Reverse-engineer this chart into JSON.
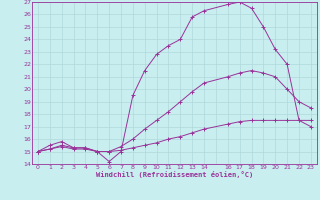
{
  "xlabel": "Windchill (Refroidissement éolien,°C)",
  "background_color": "#c8eef0",
  "grid_color": "#b0d8da",
  "line_color": "#993399",
  "xlim": [
    -0.5,
    23.5
  ],
  "ylim": [
    14,
    27
  ],
  "yticks": [
    14,
    15,
    16,
    17,
    18,
    19,
    20,
    21,
    22,
    23,
    24,
    25,
    26,
    27
  ],
  "xtick_labels": [
    "0",
    "1",
    "2",
    "3",
    "4",
    "5",
    "6",
    "7",
    "8",
    "9",
    "10",
    "11",
    "12",
    "13",
    "14",
    "",
    "16",
    "17",
    "18",
    "19",
    "20",
    "21",
    "22",
    "23"
  ],
  "xtick_positions": [
    0,
    1,
    2,
    3,
    4,
    5,
    6,
    7,
    8,
    9,
    10,
    11,
    12,
    13,
    14,
    15,
    16,
    17,
    18,
    19,
    20,
    21,
    22,
    23
  ],
  "lines": [
    {
      "x": [
        0,
        1,
        2,
        3,
        4,
        5,
        6,
        7,
        8,
        9,
        10,
        11,
        12,
        13,
        14,
        16,
        17,
        18,
        19,
        20,
        21,
        22,
        23
      ],
      "y": [
        15.0,
        15.2,
        15.4,
        15.2,
        15.2,
        15.0,
        15.0,
        15.1,
        15.3,
        15.5,
        15.7,
        16.0,
        16.2,
        16.5,
        16.8,
        17.2,
        17.4,
        17.5,
        17.5,
        17.5,
        17.5,
        17.5,
        17.5
      ]
    },
    {
      "x": [
        0,
        1,
        2,
        3,
        4,
        5,
        6,
        7,
        8,
        9,
        10,
        11,
        12,
        13,
        14,
        16,
        17,
        18,
        19,
        20,
        21,
        22,
        23
      ],
      "y": [
        15.0,
        15.2,
        15.5,
        15.3,
        15.3,
        15.0,
        15.0,
        15.4,
        16.0,
        16.8,
        17.5,
        18.2,
        19.0,
        19.8,
        20.5,
        21.0,
        21.3,
        21.5,
        21.3,
        21.0,
        20.0,
        19.0,
        18.5
      ]
    },
    {
      "x": [
        0,
        1,
        2,
        3,
        4,
        5,
        6,
        7,
        8,
        9,
        10,
        11,
        12,
        13,
        14,
        16,
        17,
        18,
        19,
        20,
        21,
        22,
        23
      ],
      "y": [
        15.0,
        15.5,
        15.8,
        15.3,
        15.3,
        15.0,
        14.2,
        15.0,
        19.5,
        21.5,
        22.8,
        23.5,
        24.0,
        25.8,
        26.3,
        26.8,
        27.0,
        26.5,
        25.0,
        23.2,
        22.0,
        17.5,
        17.0
      ]
    }
  ]
}
